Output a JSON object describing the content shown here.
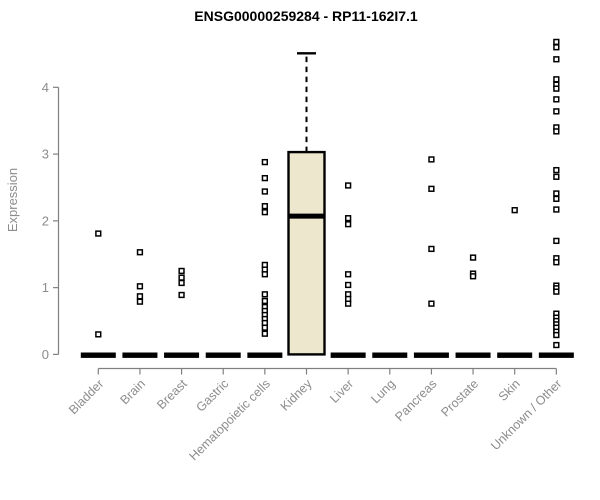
{
  "page": {
    "background": "#ffffff"
  },
  "chart_data": {
    "type": "boxplot",
    "title": "ENSG00000259284 - RP11-162I7.1",
    "ylabel": "Expression",
    "xlabel": "",
    "ylim": [
      0,
      4.75
    ],
    "yticks": [
      0,
      1,
      2,
      3,
      4
    ],
    "grid": false,
    "legend": "none",
    "categories": [
      "Bladder",
      "Brain",
      "Breast",
      "Gastric",
      "Hematopoietic cells",
      "Kidney",
      "Liver",
      "Lung",
      "Pancreas",
      "Prostate",
      "Skin",
      "Unknown / Other"
    ],
    "boxes": [
      {
        "category": "Bladder",
        "q1": 0,
        "median": 0,
        "q3": 0,
        "whisker_low": 0,
        "whisker_high": 0,
        "outliers": [
          1.81,
          0.3
        ]
      },
      {
        "category": "Brain",
        "q1": 0,
        "median": 0,
        "q3": 0,
        "whisker_low": 0,
        "whisker_high": 0,
        "outliers": [
          1.53,
          1.02,
          0.87,
          0.79
        ]
      },
      {
        "category": "Breast",
        "q1": 0,
        "median": 0,
        "q3": 0,
        "whisker_low": 0,
        "whisker_high": 0,
        "outliers": [
          1.25,
          1.15,
          1.07,
          0.89
        ]
      },
      {
        "category": "Gastric",
        "q1": 0,
        "median": 0,
        "q3": 0,
        "whisker_low": 0,
        "whisker_high": 0,
        "outliers": []
      },
      {
        "category": "Hematopoietic cells",
        "q1": 0,
        "median": 0,
        "q3": 0,
        "whisker_low": 0,
        "whisker_high": 0,
        "outliers": [
          2.88,
          2.64,
          2.44,
          2.22,
          2.13,
          1.34,
          1.27,
          1.2,
          0.9,
          0.8,
          0.71,
          0.65,
          0.59,
          0.53,
          0.47,
          0.4,
          0.31
        ]
      },
      {
        "category": "Kidney",
        "q1": 0,
        "median": 2.07,
        "q3": 3.03,
        "whisker_low": 0,
        "whisker_high": 4.51,
        "outliers": []
      },
      {
        "category": "Liver",
        "q1": 0,
        "median": 0,
        "q3": 0,
        "whisker_low": 0,
        "whisker_high": 0,
        "outliers": [
          2.53,
          2.04,
          1.95,
          1.2,
          1.04,
          0.9,
          0.83,
          0.76
        ]
      },
      {
        "category": "Lung",
        "q1": 0,
        "median": 0,
        "q3": 0,
        "whisker_low": 0,
        "whisker_high": 0,
        "outliers": []
      },
      {
        "category": "Pancreas",
        "q1": 0,
        "median": 0,
        "q3": 0,
        "whisker_low": 0,
        "whisker_high": 0,
        "outliers": [
          2.92,
          2.48,
          1.58,
          0.76
        ]
      },
      {
        "category": "Prostate",
        "q1": 0,
        "median": 0,
        "q3": 0,
        "whisker_low": 0,
        "whisker_high": 0,
        "outliers": [
          1.45,
          1.21,
          1.17
        ]
      },
      {
        "category": "Skin",
        "q1": 0,
        "median": 0,
        "q3": 0,
        "whisker_low": 0,
        "whisker_high": 0,
        "outliers": [
          2.16
        ]
      },
      {
        "category": "Unknown / Other",
        "q1": 0,
        "median": 0,
        "q3": 0,
        "whisker_low": 0,
        "whisker_high": 0,
        "outliers": [
          4.68,
          4.6,
          4.42,
          4.12,
          4.04,
          3.98,
          3.82,
          3.64,
          3.4,
          3.34,
          2.76,
          2.66,
          2.41,
          2.33,
          2.17,
          1.7,
          1.44,
          1.38,
          1.03,
          0.99,
          0.94,
          0.61,
          0.55,
          0.5,
          0.45,
          0.4,
          0.34,
          0.29,
          0.14
        ]
      }
    ],
    "colors": {
      "box_fill": "#ede7cd",
      "box_border": "#000000",
      "median": "#000000",
      "outlier_stroke": "#000000",
      "outlier_fill": "#ffffff",
      "axis_line": "#808080",
      "axis_text": "#8c8c8c",
      "title": "#000000"
    }
  }
}
